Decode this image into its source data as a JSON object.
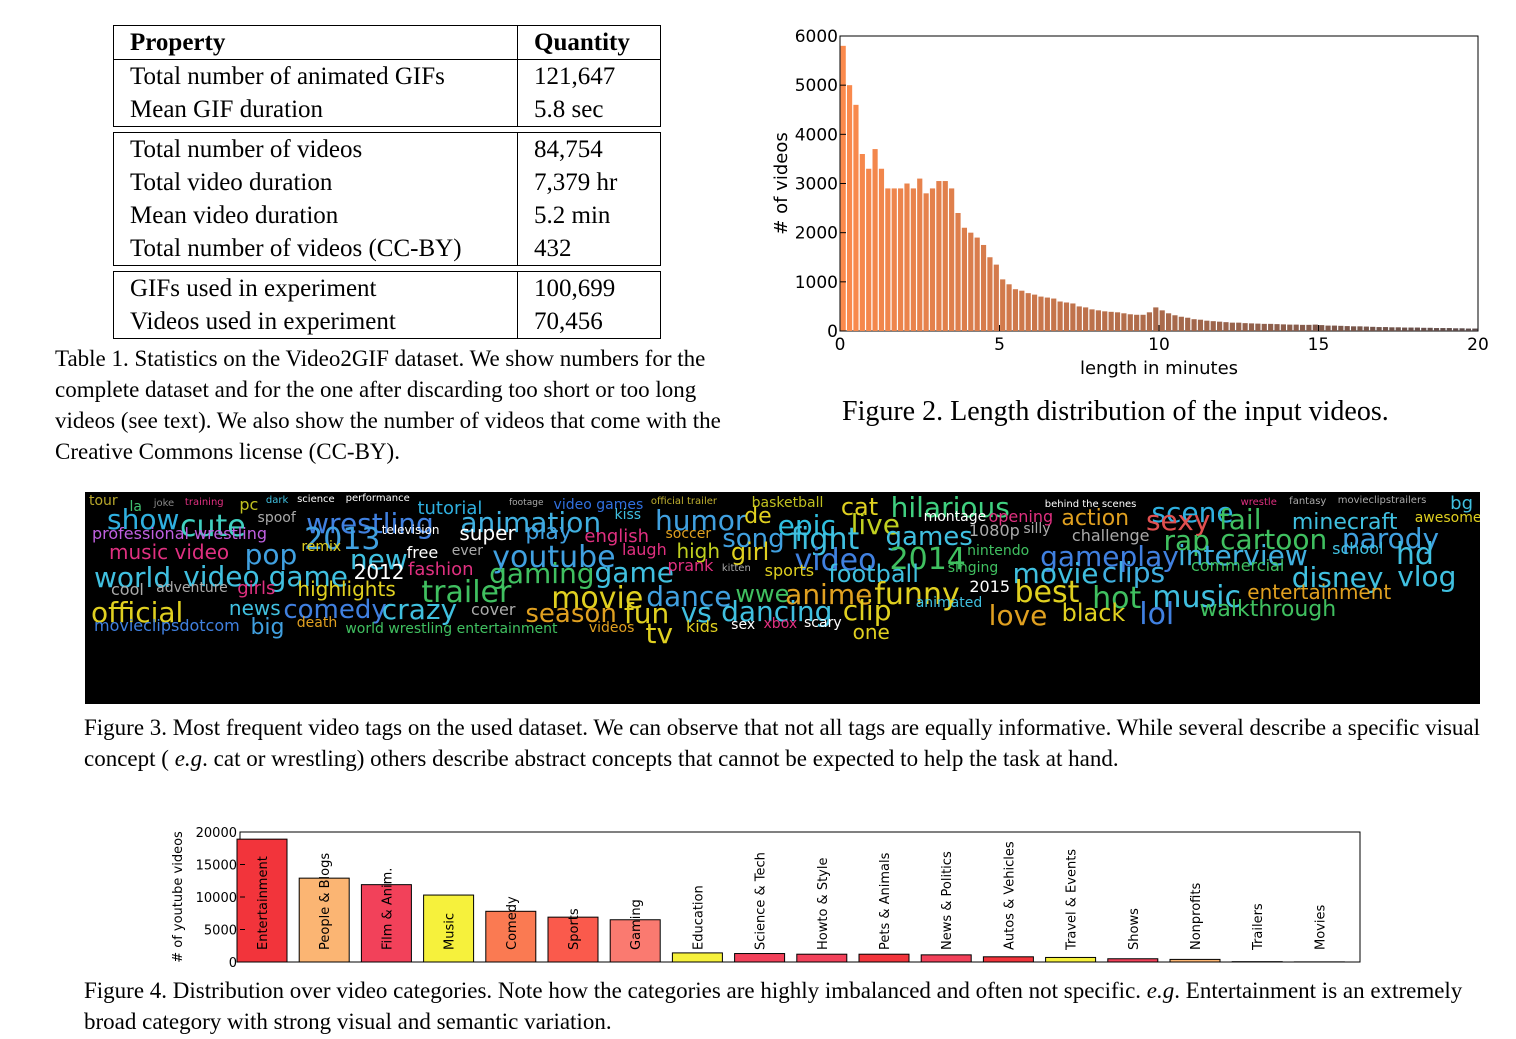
{
  "table1": {
    "header": {
      "property": "Property",
      "quantity": "Quantity"
    },
    "groups": [
      [
        {
          "property": "Total number of animated GIFs",
          "quantity": "121,647"
        },
        {
          "property": "Mean GIF duration",
          "quantity": "5.8 sec"
        }
      ],
      [
        {
          "property": "Total number of videos",
          "quantity": "84,754"
        },
        {
          "property": "Total video duration",
          "quantity": "7,379 hr"
        },
        {
          "property": "Mean video duration",
          "quantity": "5.2 min"
        },
        {
          "property": "Total number of videos (CC-BY)",
          "quantity": "432"
        }
      ],
      [
        {
          "property": "GIFs used in experiment",
          "quantity": "100,699"
        },
        {
          "property": "Videos used in experiment",
          "quantity": "70,456"
        }
      ]
    ],
    "caption": "Table 1. Statistics on the Video2GIF dataset.  We show numbers for the complete dataset and for the one after discarding too short or too long videos (see text). We also show the number of videos that come with the Creative Commons license (CC-BY)."
  },
  "figure2": {
    "caption": "Figure 2. Length distribution of the input videos.",
    "chart_data": {
      "type": "bar",
      "xlabel": "length in minutes",
      "ylabel": "# of videos",
      "xlim": [
        0,
        20
      ],
      "ylim": [
        0,
        6000
      ],
      "xticks": [
        "0",
        "5",
        "10",
        "15",
        "20"
      ],
      "yticks": [
        "0",
        "1000",
        "2000",
        "3000",
        "4000",
        "5000",
        "6000"
      ],
      "bin_width": 0.2,
      "colors": [
        "#fb8a4c",
        "#5a4a4a"
      ],
      "values": [
        5800,
        5000,
        4600,
        3600,
        3300,
        3700,
        3300,
        2900,
        2900,
        2900,
        3000,
        2900,
        3100,
        2800,
        2900,
        3050,
        3050,
        2900,
        2400,
        2100,
        2000,
        1900,
        1750,
        1500,
        1350,
        1050,
        950,
        850,
        820,
        770,
        740,
        700,
        680,
        660,
        600,
        580,
        560,
        500,
        480,
        440,
        420,
        400,
        390,
        380,
        360,
        340,
        330,
        330,
        380,
        480,
        420,
        360,
        320,
        290,
        270,
        240,
        230,
        210,
        200,
        190,
        180,
        170,
        170,
        160,
        155,
        150,
        145,
        145,
        140,
        135,
        130,
        130,
        125,
        125,
        130,
        120,
        110,
        110,
        105,
        100,
        95,
        95,
        90,
        85,
        80,
        80,
        75,
        75,
        70,
        70,
        70,
        65,
        65,
        60,
        60,
        60,
        55,
        55,
        50,
        50
      ]
    }
  },
  "figure3": {
    "caption_parts": {
      "before": "Figure 3. Most frequent video tags on the used dataset. We can observe that not all tags are equally informative. While several describe a specific visual concept ( ",
      "eg": "e.g",
      "after": ". cat or wrestling) others describe abstract concepts that cannot be expected to help the task at hand."
    },
    "words": [
      {
        "t": "tour",
        "c": "#b8a82b",
        "s": 14
      },
      {
        "t": "la",
        "c": "#40c070",
        "s": 14
      },
      {
        "t": "joke",
        "c": "#888",
        "s": 10
      },
      {
        "t": "training",
        "c": "#e03080",
        "s": 10
      },
      {
        "t": "pc",
        "c": "#c0c020",
        "s": 16
      },
      {
        "t": "dark",
        "c": "#40c0e0",
        "s": 10
      },
      {
        "t": "science",
        "c": "#fff",
        "s": 10
      },
      {
        "t": "performance",
        "c": "#fff",
        "s": 10
      },
      {
        "t": "tutorial",
        "c": "#2fb0e0",
        "s": 18
      },
      {
        "t": "footage",
        "c": "#aaa",
        "s": 9
      },
      {
        "t": "video games",
        "c": "#3070e0",
        "s": 14
      },
      {
        "t": "official trailer",
        "c": "#c0b030",
        "s": 10
      },
      {
        "t": "basketball",
        "c": "#c0c020",
        "s": 14
      },
      {
        "t": "cat",
        "c": "#e0d020",
        "s": 24
      },
      {
        "t": "hilarious",
        "c": "#40d080",
        "s": 28
      },
      {
        "t": "behind the scenes",
        "c": "#fff",
        "s": 10
      },
      {
        "t": "scene",
        "c": "#2fb0e0",
        "s": 28
      },
      {
        "t": "wrestle",
        "c": "#e03080",
        "s": 10
      },
      {
        "t": "fantasy",
        "c": "#aaa",
        "s": 10
      },
      {
        "t": "movieclipstrailers",
        "c": "#aaa",
        "s": 10
      },
      {
        "t": "bg",
        "c": "#40c0e0",
        "s": 18
      },
      {
        "t": "show",
        "c": "#2fb0e0",
        "s": 28
      },
      {
        "t": "cute",
        "c": "#40d0c0",
        "s": 30
      },
      {
        "t": "spoof",
        "c": "#aaa",
        "s": 14
      },
      {
        "t": "wrestling",
        "c": "#4080e0",
        "s": 28
      },
      {
        "t": "animation",
        "c": "#40b0e0",
        "s": 28
      },
      {
        "t": "kiss",
        "c": "#40c0e0",
        "s": 14
      },
      {
        "t": "humor",
        "c": "#40a0e0",
        "s": 28
      },
      {
        "t": "de",
        "c": "#e0d020",
        "s": 22
      },
      {
        "t": "epic",
        "c": "#2fc0e0",
        "s": 28
      },
      {
        "t": "live",
        "c": "#c0d020",
        "s": 28
      },
      {
        "t": "montage",
        "c": "#fff",
        "s": 14
      },
      {
        "t": "opening",
        "c": "#e03080",
        "s": 16
      },
      {
        "t": "action",
        "c": "#e0a020",
        "s": 22
      },
      {
        "t": "sexy",
        "c": "#e05050",
        "s": 28
      },
      {
        "t": "fail",
        "c": "#40c060",
        "s": 28
      },
      {
        "t": "minecraft",
        "c": "#40c0e0",
        "s": 22
      },
      {
        "t": "awesome",
        "c": "#e0d020",
        "s": 14
      },
      {
        "t": "professional wrestling",
        "c": "#c060e0",
        "s": 16
      },
      {
        "t": "2013",
        "c": "#40a0e0",
        "s": 30
      },
      {
        "t": "television",
        "c": "#fff",
        "s": 12
      },
      {
        "t": "super",
        "c": "#fff",
        "s": 20
      },
      {
        "t": "play",
        "c": "#40a0e0",
        "s": 22
      },
      {
        "t": "english",
        "c": "#e03080",
        "s": 18
      },
      {
        "t": "soccer",
        "c": "#e0a020",
        "s": 14
      },
      {
        "t": "song",
        "c": "#40a0e0",
        "s": 26
      },
      {
        "t": "fight",
        "c": "#40c0e0",
        "s": 30
      },
      {
        "t": "games",
        "c": "#40c0e0",
        "s": 26
      },
      {
        "t": "1080p",
        "c": "#aaa",
        "s": 16
      },
      {
        "t": "silly",
        "c": "#aaa",
        "s": 14
      },
      {
        "t": "challenge",
        "c": "#aaa",
        "s": 16
      },
      {
        "t": "rap",
        "c": "#40c060",
        "s": 28
      },
      {
        "t": "cartoon",
        "c": "#40c060",
        "s": 28
      },
      {
        "t": "parody",
        "c": "#40a0e0",
        "s": 28
      },
      {
        "t": "music video",
        "c": "#e03080",
        "s": 20
      },
      {
        "t": "pop",
        "c": "#40a0e0",
        "s": 28
      },
      {
        "t": "remix",
        "c": "#e0d020",
        "s": 14
      },
      {
        "t": "new",
        "c": "#40c0e0",
        "s": 28
      },
      {
        "t": "free",
        "c": "#fff",
        "s": 16
      },
      {
        "t": "ever",
        "c": "#aaa",
        "s": 14
      },
      {
        "t": "youtube",
        "c": "#40a0e0",
        "s": 30
      },
      {
        "t": "laugh",
        "c": "#e03080",
        "s": 16
      },
      {
        "t": "high",
        "c": "#c0d020",
        "s": 20
      },
      {
        "t": "girl",
        "c": "#e0d020",
        "s": 24
      },
      {
        "t": "video",
        "c": "#4080e0",
        "s": 30
      },
      {
        "t": "2014",
        "c": "#40c060",
        "s": 30
      },
      {
        "t": "nintendo",
        "c": "#40c060",
        "s": 14
      },
      {
        "t": "gameplay",
        "c": "#4080e0",
        "s": 28
      },
      {
        "t": "interview",
        "c": "#40b0e0",
        "s": 28
      },
      {
        "t": "school",
        "c": "#40c0e0",
        "s": 16
      },
      {
        "t": "hd",
        "c": "#40c0e0",
        "s": 30
      },
      {
        "t": "world",
        "c": "#40c0e0",
        "s": 28
      },
      {
        "t": "video game",
        "c": "#40c0e0",
        "s": 28
      },
      {
        "t": "2012",
        "c": "#fff",
        "s": 20
      },
      {
        "t": "fashion",
        "c": "#e03080",
        "s": 18
      },
      {
        "t": "gaming",
        "c": "#40c060",
        "s": 28
      },
      {
        "t": "game",
        "c": "#40c0e0",
        "s": 28
      },
      {
        "t": "prank",
        "c": "#e03080",
        "s": 16
      },
      {
        "t": "kitten",
        "c": "#aaa",
        "s": 10
      },
      {
        "t": "sports",
        "c": "#e0d020",
        "s": 16
      },
      {
        "t": "football",
        "c": "#40c0e0",
        "s": 24
      },
      {
        "t": "singing",
        "c": "#40c060",
        "s": 14
      },
      {
        "t": "movie",
        "c": "#40c0e0",
        "s": 28
      },
      {
        "t": "clips",
        "c": "#40b0e0",
        "s": 28
      },
      {
        "t": "commercial",
        "c": "#40c060",
        "s": 16
      },
      {
        "t": "disney",
        "c": "#40c0e0",
        "s": 28
      },
      {
        "t": "vlog",
        "c": "#40c0e0",
        "s": 28
      },
      {
        "t": "cool",
        "c": "#aaa",
        "s": 16
      },
      {
        "t": "adventure",
        "c": "#aaa",
        "s": 14
      },
      {
        "t": "girls",
        "c": "#e03080",
        "s": 18
      },
      {
        "t": "highlights",
        "c": "#e0d020",
        "s": 20
      },
      {
        "t": "trailer",
        "c": "#40c060",
        "s": 30
      },
      {
        "t": "movie",
        "c": "#e0d020",
        "s": 30
      },
      {
        "t": "dance",
        "c": "#40a0e0",
        "s": 28
      },
      {
        "t": "wwe",
        "c": "#40c060",
        "s": 24
      },
      {
        "t": "anime",
        "c": "#e0a020",
        "s": 28
      },
      {
        "t": "funny",
        "c": "#e0d020",
        "s": 30
      },
      {
        "t": "2015",
        "c": "#fff",
        "s": 16
      },
      {
        "t": "best",
        "c": "#e0d020",
        "s": 30
      },
      {
        "t": "hot",
        "c": "#40c060",
        "s": 30
      },
      {
        "t": "music",
        "c": "#40c0e0",
        "s": 30
      },
      {
        "t": "entertainment",
        "c": "#e0a020",
        "s": 20
      },
      {
        "t": "official",
        "c": "#e0d020",
        "s": 28
      },
      {
        "t": "news",
        "c": "#40c0e0",
        "s": 20
      },
      {
        "t": "comedy",
        "c": "#4080e0",
        "s": 26
      },
      {
        "t": "crazy",
        "c": "#40c0e0",
        "s": 28
      },
      {
        "t": "cover",
        "c": "#aaa",
        "s": 16
      },
      {
        "t": "season",
        "c": "#e0a020",
        "s": 26
      },
      {
        "t": "fun",
        "c": "#e0d020",
        "s": 28
      },
      {
        "t": "vs",
        "c": "#40c0e0",
        "s": 28
      },
      {
        "t": "dancing",
        "c": "#40c0e0",
        "s": 28
      },
      {
        "t": "clip",
        "c": "#e0d020",
        "s": 28
      },
      {
        "t": "animated",
        "c": "#40c0e0",
        "s": 14
      },
      {
        "t": "love",
        "c": "#e0a020",
        "s": 28
      },
      {
        "t": "black",
        "c": "#e0d020",
        "s": 24
      },
      {
        "t": "lol",
        "c": "#4080e0",
        "s": 30
      },
      {
        "t": "walkthrough",
        "c": "#40c060",
        "s": 22
      },
      {
        "t": "movieclipsdotcom",
        "c": "#4080e0",
        "s": 16
      },
      {
        "t": "big",
        "c": "#40a0e0",
        "s": 22
      },
      {
        "t": "death",
        "c": "#e0a020",
        "s": 14
      },
      {
        "t": "world wrestling entertainment",
        "c": "#40c060",
        "s": 14
      },
      {
        "t": "videos",
        "c": "#e0a020",
        "s": 14
      },
      {
        "t": "tv",
        "c": "#e0d020",
        "s": 28
      },
      {
        "t": "kids",
        "c": "#e0d020",
        "s": 16
      },
      {
        "t": "sex",
        "c": "#fff",
        "s": 14
      },
      {
        "t": "xbox",
        "c": "#e03080",
        "s": 14
      },
      {
        "t": "scary",
        "c": "#fff",
        "s": 14
      },
      {
        "t": "one",
        "c": "#e0d020",
        "s": 20
      }
    ]
  },
  "figure4": {
    "caption_parts": {
      "before": "Figure 4. Distribution over video categories. Note how the categories are highly imbalanced and often not specific.  ",
      "eg": "e.g",
      "after": ". Entertainment is an extremely broad category with strong visual and semantic variation."
    },
    "chart_data": {
      "type": "bar",
      "ylabel": "# of youtube videos",
      "ylim": [
        0,
        20000
      ],
      "yticks": [
        "0",
        "5000",
        "10000",
        "15000",
        "20000"
      ],
      "categories": [
        "Entertainment",
        "People & Blogs",
        "Film & Anim.",
        "Music",
        "Comedy",
        "Sports",
        "Gaming",
        "Education",
        "Science & Tech",
        "Howto & Style",
        "Pets & Animals",
        "News & Politics",
        "Autos & Vehicles",
        "Travel & Events",
        "Shows",
        "Nonprofits",
        "Trailers",
        "Movies"
      ],
      "values": [
        18900,
        12900,
        11900,
        10300,
        7800,
        6900,
        6500,
        1400,
        1300,
        1200,
        1200,
        1100,
        800,
        700,
        500,
        400,
        50,
        20
      ],
      "colors": [
        "#f2343b",
        "#fbb573",
        "#f2415a",
        "#f6f13c",
        "#fa7a52",
        "#fa5a4c",
        "#fa7a70",
        "#f6f13c",
        "#f2415a",
        "#f2415a",
        "#f2343b",
        "#f2415a",
        "#f2343b",
        "#f6f13c",
        "#f2415a",
        "#fbb573",
        "#fa7a70",
        "#fa7a70"
      ]
    }
  }
}
